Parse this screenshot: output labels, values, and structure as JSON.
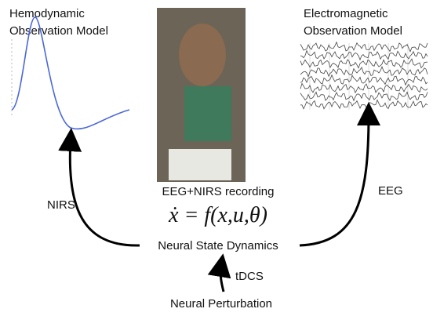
{
  "left_model": {
    "title_lines": [
      "Hemodynamic",
      "Observation Model"
    ]
  },
  "right_model": {
    "title_lines": [
      "Electromagnetic",
      "Observation Model"
    ]
  },
  "photo_caption": "EEG+NIRS recording",
  "equation": "ẋ = f(x,u,θ)",
  "center_label": "Neural State Dynamics",
  "left_arrow_label": "NIRS",
  "right_arrow_label": "EEG",
  "bottom_arrow_label": "tDCS",
  "bottom_label": "Neural Perturbation"
}
